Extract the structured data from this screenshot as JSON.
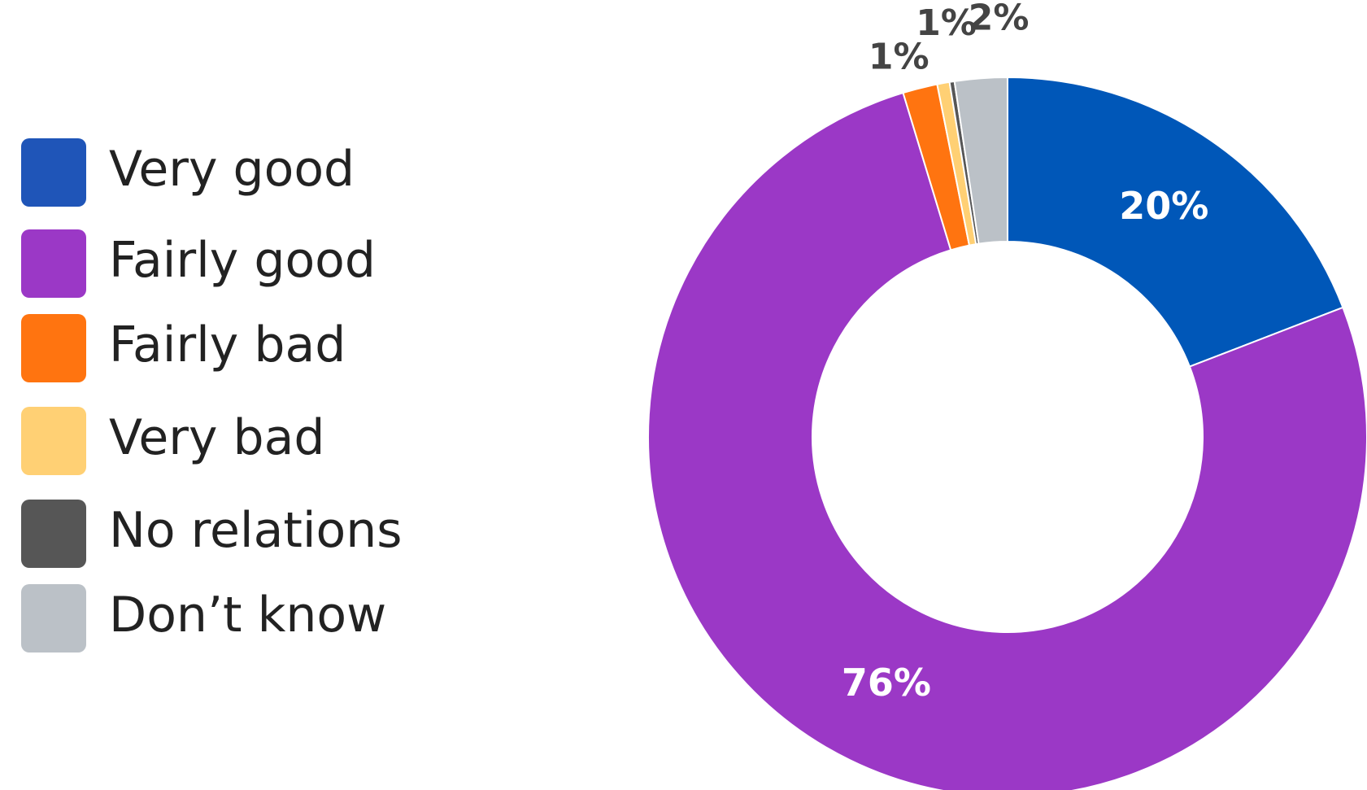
{
  "chart_data": {
    "type": "pie",
    "subtype": "donut",
    "title": "",
    "legend_position": "left",
    "categories": [
      "Very good",
      "Fairly good",
      "Fairly bad",
      "Very bad",
      "No relations",
      "Don’t know"
    ],
    "values": [
      20,
      76,
      1,
      1,
      0,
      2
    ],
    "value_labels": [
      "20%",
      "76%",
      "1%",
      "1%",
      "",
      "2%"
    ],
    "slice_angles_deg": [
      68.9,
      274.2,
      5.6,
      2.0,
      0.8,
      8.5
    ],
    "colors": [
      "#0057B8",
      "#9B38C6",
      "#FF7410",
      "#FFD074",
      "#565656",
      "#BBC1C7"
    ],
    "legend_colors": [
      "#1F55B8",
      "#9B38C6",
      "#FF7410",
      "#FFD074",
      "#565656",
      "#BBC1C7"
    ]
  }
}
